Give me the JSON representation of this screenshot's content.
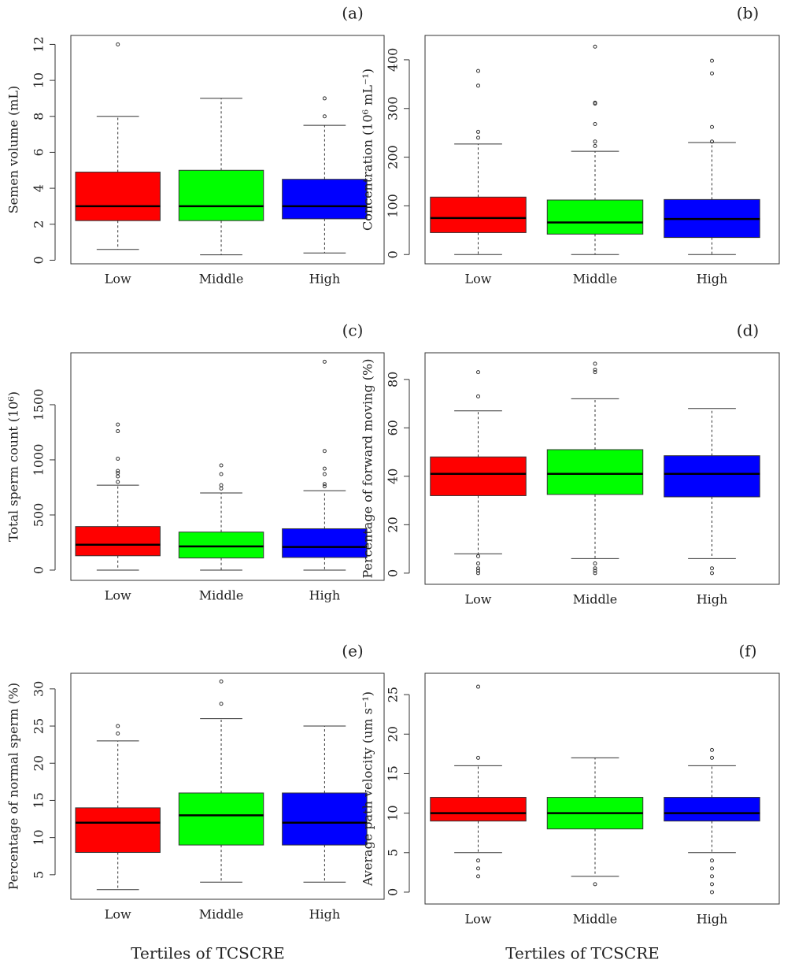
{
  "chart_data": [
    {
      "type": "box",
      "panel": "(a)",
      "ylabel": "Semen volume (mL)",
      "categories": [
        "Low",
        "Middle",
        "High"
      ],
      "colors": [
        "#ff0000",
        "#00ff00",
        "#0000ff"
      ],
      "ylim": [
        -0.2,
        12.5
      ],
      "yticks": [
        0,
        2,
        4,
        6,
        8,
        10,
        12
      ],
      "boxes": [
        {
          "whisker_low": 0.6,
          "q1": 2.2,
          "median": 3,
          "q3": 4.9,
          "whisker_high": 8,
          "outliers": [
            12
          ]
        },
        {
          "whisker_low": 0.3,
          "q1": 2.2,
          "median": 3,
          "q3": 5.0,
          "whisker_high": 9,
          "outliers": []
        },
        {
          "whisker_low": 0.4,
          "q1": 2.3,
          "median": 3,
          "q3": 4.5,
          "whisker_high": 7.5,
          "outliers": [
            8,
            9
          ]
        }
      ]
    },
    {
      "type": "box",
      "panel": "(b)",
      "ylabel": "Concentration (10⁶ mL⁻¹)",
      "categories": [
        "Low",
        "Middle",
        "High"
      ],
      "colors": [
        "#ff0000",
        "#00ff00",
        "#0000ff"
      ],
      "ylim": [
        -19,
        450
      ],
      "yticks": [
        0,
        100,
        200,
        300,
        400
      ],
      "boxes": [
        {
          "whisker_low": 0,
          "q1": 45,
          "median": 75,
          "q3": 118,
          "whisker_high": 227,
          "outliers": [
            240,
            252,
            347,
            377
          ]
        },
        {
          "whisker_low": 0,
          "q1": 42,
          "median": 66,
          "q3": 112,
          "whisker_high": 212,
          "outliers": [
            223,
            232,
            268,
            310,
            312,
            427
          ]
        },
        {
          "whisker_low": 0,
          "q1": 35,
          "median": 73,
          "q3": 113,
          "whisker_high": 230,
          "outliers": [
            232,
            262,
            372,
            398
          ]
        }
      ]
    },
    {
      "type": "box",
      "panel": "(c)",
      "ylabel": "Total sperm count (10⁶)",
      "categories": [
        "Low",
        "Middle",
        "High"
      ],
      "colors": [
        "#ff0000",
        "#00ff00",
        "#0000ff"
      ],
      "ylim": [
        -93,
        1971
      ],
      "yticks": [
        0,
        500,
        1000,
        1500
      ],
      "boxes": [
        {
          "whisker_low": 0,
          "q1": 130,
          "median": 230,
          "q3": 395,
          "whisker_high": 770,
          "outliers": [
            800,
            850,
            880,
            900,
            1010,
            1260,
            1320
          ]
        },
        {
          "whisker_low": 0,
          "q1": 110,
          "median": 215,
          "q3": 345,
          "whisker_high": 700,
          "outliers": [
            740,
            770,
            870,
            950
          ]
        },
        {
          "whisker_low": 0,
          "q1": 115,
          "median": 210,
          "q3": 375,
          "whisker_high": 720,
          "outliers": [
            760,
            780,
            870,
            920,
            1080,
            1890
          ]
        }
      ]
    },
    {
      "type": "box",
      "panel": "(d)",
      "ylabel": "Percentage of forward moving (%)",
      "categories": [
        "Low",
        "Middle",
        "High"
      ],
      "colors": [
        "#ff0000",
        "#00ff00",
        "#0000ff"
      ],
      "ylim": [
        -4.6,
        91
      ],
      "yticks": [
        0,
        20,
        40,
        60,
        80
      ],
      "boxes": [
        {
          "whisker_low": 8,
          "q1": 32,
          "median": 41,
          "q3": 48,
          "whisker_high": 67,
          "outliers": [
            0,
            1,
            2,
            4,
            7,
            73,
            83
          ]
        },
        {
          "whisker_low": 6,
          "q1": 32.5,
          "median": 41,
          "q3": 51,
          "whisker_high": 72,
          "outliers": [
            0,
            1,
            2,
            4,
            83,
            84,
            86.5
          ]
        },
        {
          "whisker_low": 6,
          "q1": 31.5,
          "median": 41,
          "q3": 48.5,
          "whisker_high": 68,
          "outliers": [
            0,
            2
          ]
        }
      ]
    },
    {
      "type": "box",
      "panel": "(e)",
      "ylabel": "Percentage of normal sperm (%)",
      "categories": [
        "Low",
        "Middle",
        "High"
      ],
      "colors": [
        "#ff0000",
        "#00ff00",
        "#0000ff"
      ],
      "ylim": [
        1.7,
        32.1
      ],
      "yticks": [
        5,
        10,
        15,
        20,
        25,
        30
      ],
      "xlabel": "Tertiles of TCSCRE",
      "boxes": [
        {
          "whisker_low": 3,
          "q1": 8,
          "median": 12,
          "q3": 14,
          "whisker_high": 23,
          "outliers": [
            24,
            25
          ]
        },
        {
          "whisker_low": 4,
          "q1": 9,
          "median": 13,
          "q3": 16,
          "whisker_high": 26,
          "outliers": [
            28,
            31
          ]
        },
        {
          "whisker_low": 4,
          "q1": 9,
          "median": 12,
          "q3": 16,
          "whisker_high": 25,
          "outliers": []
        }
      ]
    },
    {
      "type": "box",
      "panel": "(f)",
      "ylabel": "Average path velocity (um s⁻¹)",
      "categories": [
        "Low",
        "Middle",
        "High"
      ],
      "colors": [
        "#ff0000",
        "#00ff00",
        "#0000ff"
      ],
      "ylim": [
        -1.5,
        27.7
      ],
      "yticks": [
        0,
        5,
        10,
        15,
        20,
        25
      ],
      "xlabel": "Tertiles of TCSCRE",
      "boxes": [
        {
          "whisker_low": 5,
          "q1": 9,
          "median": 10,
          "q3": 12,
          "whisker_high": 16,
          "outliers": [
            2,
            3,
            4,
            17,
            26
          ]
        },
        {
          "whisker_low": 2,
          "q1": 8,
          "median": 10,
          "q3": 12,
          "whisker_high": 17,
          "outliers": [
            1
          ]
        },
        {
          "whisker_low": 5,
          "q1": 9,
          "median": 10,
          "q3": 12,
          "whisker_high": 16,
          "outliers": [
            0,
            1,
            2,
            3,
            4,
            17,
            18
          ]
        }
      ]
    }
  ]
}
